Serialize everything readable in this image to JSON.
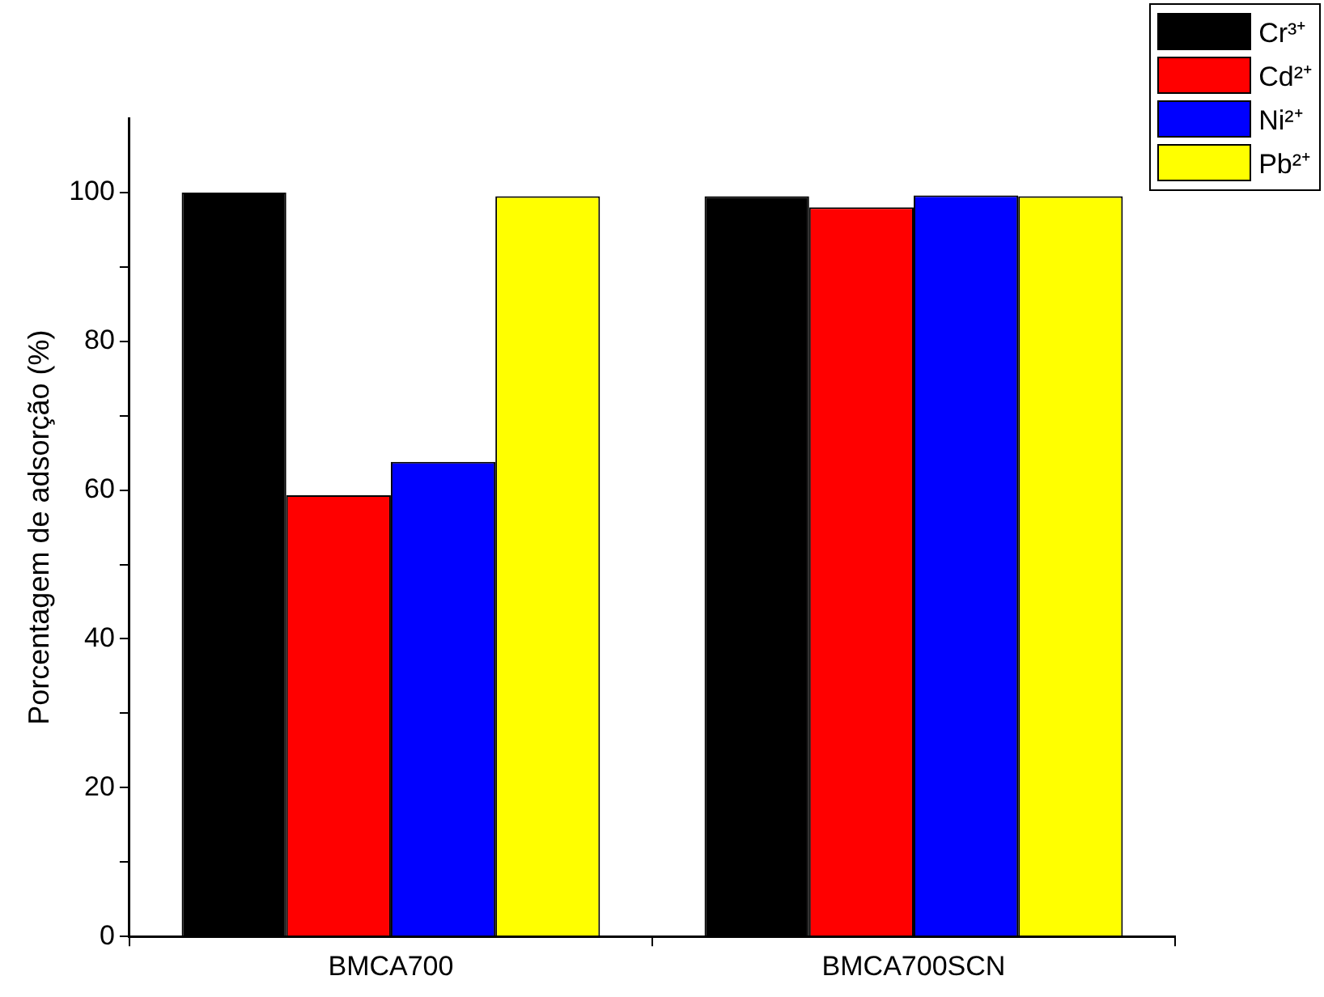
{
  "chart_data": {
    "type": "bar",
    "ylabel": "Porcentagem de adsorção (%)",
    "categories": [
      "BMCA700",
      "BMCA700SCN"
    ],
    "series": [
      {
        "name": "Cr³⁺",
        "color": "#000000",
        "values": [
          100,
          99.5
        ]
      },
      {
        "name": "Cd²⁺",
        "color": "#ff0000",
        "values": [
          59.3,
          98.0
        ]
      },
      {
        "name": "Ni²⁺",
        "color": "#0000ff",
        "values": [
          63.8,
          99.6
        ]
      },
      {
        "name": "Pb²⁺",
        "color": "#ffff00",
        "values": [
          99.5,
          99.5
        ]
      }
    ],
    "ylim": [
      0,
      110
    ],
    "yticks": [
      0,
      {
        "value": 10,
        "label": null
      },
      20,
      {
        "value": 30,
        "label": null
      },
      40,
      {
        "value": 50,
        "label": null
      },
      60,
      {
        "value": 70,
        "label": null
      },
      80,
      {
        "value": 90,
        "label": null
      },
      100
    ],
    "grid": false,
    "legend": "top right"
  }
}
